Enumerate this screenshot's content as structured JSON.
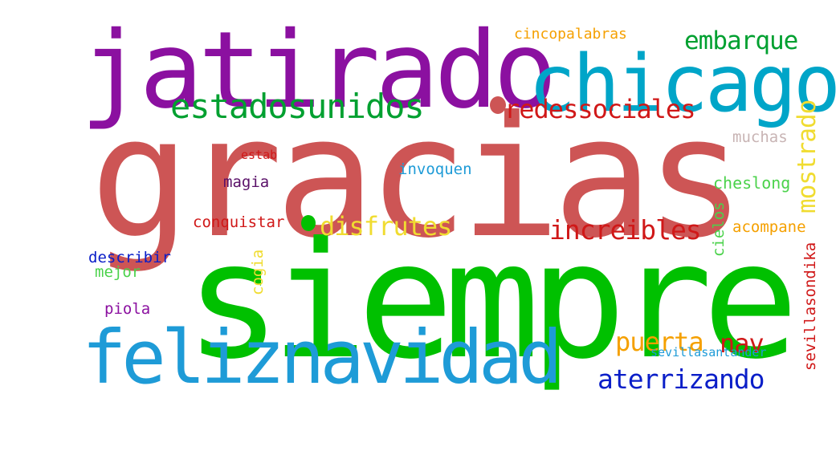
{
  "colors": {
    "red": "#cd5555",
    "green": "#00c000",
    "purple": "#8b10a0",
    "teal": "#00a5c8",
    "blue_light": "#1e9bd7",
    "dark_green": "#00a030",
    "crimson": "#d01818",
    "orange": "#f5a000",
    "yellow": "#f0dc30",
    "navy": "#0a1ec8",
    "grey": "#c8b4b4",
    "light_green": "#4bd24b"
  },
  "words": {
    "gracias": "gracias",
    "siempre": "siempre",
    "jatirado": "jatirado",
    "chicago": "chicago",
    "feliznavidad": "feliznavidad",
    "estadosunidos": "estadosunidos",
    "embarque": "embarque",
    "cincopalabras": "cincopalabras",
    "redessociales": "redessociales",
    "mostrado": "mostrado",
    "muchas": "muchas",
    "estab": "estab",
    "invoquen": "invoquen",
    "magia": "magia",
    "cheslong": "cheslong",
    "disfrutes": "disfrutes",
    "conquistar": "conquistar",
    "increibles": "increibles",
    "acompane": "acompane",
    "cielos": "cielos",
    "describir": "describir",
    "mejor": "mejor",
    "cogia": "cogia",
    "sevillasondika": "sevillasondika",
    "piola": "piola",
    "puerta": "puerta",
    "nav": "nav",
    "aterrizando": "aterrizando",
    "sevillasantander": "sevillasantander"
  }
}
